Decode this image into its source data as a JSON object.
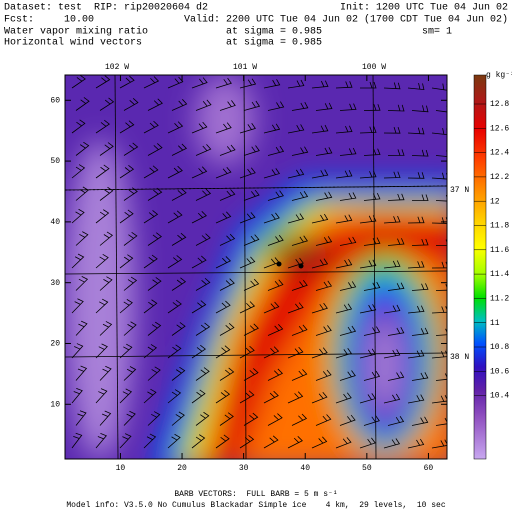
{
  "header": {
    "dataset": "Dataset: test  RIP: rip20020604 d2",
    "init": "Init: 1200 UTC Tue 04 Jun 02",
    "fcst": "Fcst:     10.00",
    "valid": "Valid: 2200 UTC Tue 04 Jun 02 (1700 CDT Tue 04 Jun 02)",
    "field1": "Water vapor mixing ratio",
    "level1": "at sigma = 0.985",
    "smooth": "sm= 1",
    "field2": "Horizontal wind vectors",
    "level2": "at sigma = 0.985"
  },
  "axes": {
    "xticks": [
      10,
      20,
      30,
      40,
      50,
      60
    ],
    "yticks": [
      10,
      20,
      30,
      40,
      50,
      60
    ],
    "lon_labels": [
      "102 W",
      "101 W",
      "100 W"
    ],
    "lat_labels": [
      "37 N",
      "38 N"
    ]
  },
  "colorbar": {
    "unit": "g kg⁻¹",
    "labels": [
      12.8,
      12.6,
      12.4,
      12.2,
      12,
      11.8,
      11.6,
      11.4,
      11.2,
      11,
      10.8,
      10.6,
      10.4
    ]
  },
  "footer": {
    "barb": "BARB VECTORS:  FULL BARB = 5 m s⁻¹",
    "model": "Model info: V3.5.0 No Cumulus Blackadar Simple ice    4 km,  29 levels,  10 sec"
  }
}
